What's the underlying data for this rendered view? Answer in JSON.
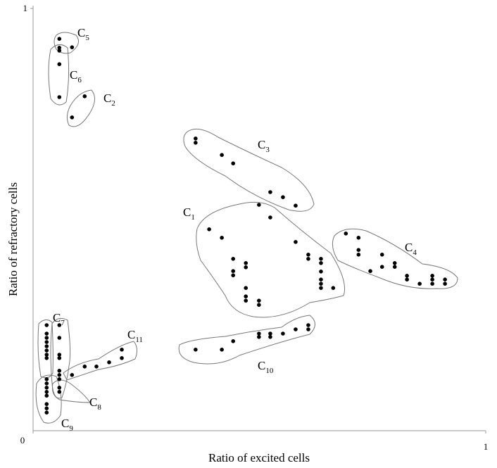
{
  "chart_data": {
    "type": "scatter",
    "x_label": "Ratio of excited cells",
    "y_label": "Ratio of refractory cells",
    "xlim": [
      0,
      1
    ],
    "ylim": [
      0,
      1
    ],
    "xticks": [
      0,
      1
    ],
    "yticks": [
      1
    ],
    "color": "#000000",
    "x": [
      0.058,
      0.086,
      0.058,
      0.058,
      0.058,
      0.058,
      0.114,
      0.086,
      0.359,
      0.359,
      0.417,
      0.442,
      0.524,
      0.552,
      0.58,
      0.499,
      0.524,
      0.389,
      0.417,
      0.442,
      0.47,
      0.47,
      0.442,
      0.442,
      0.58,
      0.608,
      0.608,
      0.636,
      0.636,
      0.636,
      0.636,
      0.636,
      0.636,
      0.663,
      0.47,
      0.47,
      0.47,
      0.499,
      0.499,
      0.691,
      0.719,
      0.719,
      0.719,
      0.771,
      0.745,
      0.771,
      0.799,
      0.799,
      0.826,
      0.826,
      0.854,
      0.882,
      0.882,
      0.882,
      0.91,
      0.91,
      0.359,
      0.417,
      0.442,
      0.499,
      0.499,
      0.524,
      0.524,
      0.552,
      0.58,
      0.608,
      0.608,
      0.196,
      0.196,
      0.168,
      0.14,
      0.114,
      0.086,
      0.03,
      0.058,
      0.03,
      0.03,
      0.058,
      0.03,
      0.03,
      0.03,
      0.03,
      0.058,
      0.03,
      0.058,
      0.058,
      0.058,
      0.058,
      0.03,
      0.03,
      0.03,
      0.058,
      0.03,
      0.058,
      0.03,
      0.03,
      0.03,
      0.03
    ],
    "values": [
      0.928,
      0.908,
      0.907,
      0.9,
      0.868,
      0.79,
      0.792,
      0.742,
      0.692,
      0.682,
      0.653,
      0.633,
      0.565,
      0.553,
      0.533,
      0.535,
      0.505,
      0.477,
      0.457,
      0.407,
      0.397,
      0.387,
      0.378,
      0.368,
      0.447,
      0.417,
      0.407,
      0.407,
      0.397,
      0.377,
      0.358,
      0.348,
      0.338,
      0.338,
      0.338,
      0.318,
      0.308,
      0.308,
      0.298,
      0.467,
      0.457,
      0.428,
      0.417,
      0.417,
      0.378,
      0.388,
      0.397,
      0.388,
      0.367,
      0.358,
      0.348,
      0.367,
      0.358,
      0.348,
      0.358,
      0.348,
      0.192,
      0.192,
      0.212,
      0.23,
      0.222,
      0.23,
      0.222,
      0.23,
      0.24,
      0.25,
      0.24,
      0.192,
      0.172,
      0.162,
      0.152,
      0.152,
      0.132,
      0.25,
      0.25,
      0.23,
      0.22,
      0.22,
      0.21,
      0.2,
      0.19,
      0.18,
      0.18,
      0.172,
      0.172,
      0.142,
      0.132,
      0.122,
      0.122,
      0.112,
      0.102,
      0.102,
      0.092,
      0.092,
      0.083,
      0.063,
      0.053,
      0.043
    ],
    "cluster_labels": [
      {
        "text": "C",
        "sub": "5"
      },
      {
        "text": "C",
        "sub": "6"
      },
      {
        "text": "C",
        "sub": "2"
      },
      {
        "text": "C",
        "sub": "3"
      },
      {
        "text": "C",
        "sub": "1"
      },
      {
        "text": "C",
        "sub": "4"
      },
      {
        "text": "C",
        "sub": "10"
      },
      {
        "text": "C",
        "sub": "11"
      },
      {
        "text": "C",
        "sub": "7"
      },
      {
        "text": "C",
        "sub": "8"
      },
      {
        "text": "C",
        "sub": "9"
      }
    ]
  }
}
